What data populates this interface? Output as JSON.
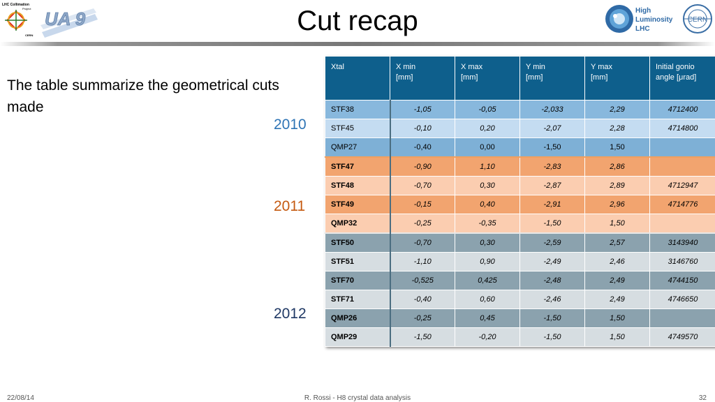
{
  "slide": {
    "title": "Cut recap",
    "intro": "The table summarize the geometrical cuts made",
    "years": [
      "2010",
      "2011",
      "2012"
    ],
    "logos": {
      "lhc_collimation": "LHC Collimation",
      "lhc_project": "Project",
      "lhc_cern": "CERN",
      "ua9": "UA 9",
      "hl_line1": "High",
      "hl_line2": "Luminosity",
      "hl_line3": "LHC",
      "cern": "CERN"
    }
  },
  "table": {
    "headers": [
      {
        "l1": "Xtal",
        "l2": ""
      },
      {
        "l1": "X min",
        "l2": "[mm]"
      },
      {
        "l1": "X max",
        "l2": "[mm]"
      },
      {
        "l1": "Y min",
        "l2": "[mm]"
      },
      {
        "l1": "Y max",
        "l2": "[mm]"
      },
      {
        "l1": "Initial gonio",
        "l2": "angle [μrad]"
      }
    ],
    "rows": [
      [
        "STF38",
        "-1,05",
        "-0,05",
        "-2,033",
        "2,29",
        "4712400"
      ],
      [
        "STF45",
        "-0,10",
        "0,20",
        "-2,07",
        "2,28",
        "4714800"
      ],
      [
        "QMP27",
        "-0,40",
        "0,00",
        "-1,50",
        "1,50",
        ""
      ],
      [
        "STF47",
        "-0,90",
        "1,10",
        "-2,83",
        "2,86",
        ""
      ],
      [
        "STF48",
        "-0,70",
        "0,30",
        "-2,87",
        "2,89",
        "4712947"
      ],
      [
        "STF49",
        "-0,15",
        "0,40",
        "-2,91",
        "2,96",
        "4714776"
      ],
      [
        "QMP32",
        "-0,25",
        "-0,35",
        "-1,50",
        "1,50",
        ""
      ],
      [
        "STF50",
        "-0,70",
        "0,30",
        "-2,59",
        "2,57",
        "3143940"
      ],
      [
        "STF51",
        "-1,10",
        "0,90",
        "-2,49",
        "2,46",
        "3146760"
      ],
      [
        "STF70",
        "-0,525",
        "0,425",
        "-2,48",
        "2,49",
        "4744150"
      ],
      [
        "STF71",
        "-0,40",
        "0,60",
        "-2,46",
        "2,49",
        "4746650"
      ],
      [
        "QMP26",
        "-0,25",
        "0,45",
        "-1,50",
        "1,50",
        ""
      ],
      [
        "QMP29",
        "-1,50",
        "-0,20",
        "-1,50",
        "1,50",
        "4749570"
      ]
    ]
  },
  "footer": {
    "date": "22/08/14",
    "center": "R. Rossi - H8 crystal data analysis",
    "page": "32"
  }
}
